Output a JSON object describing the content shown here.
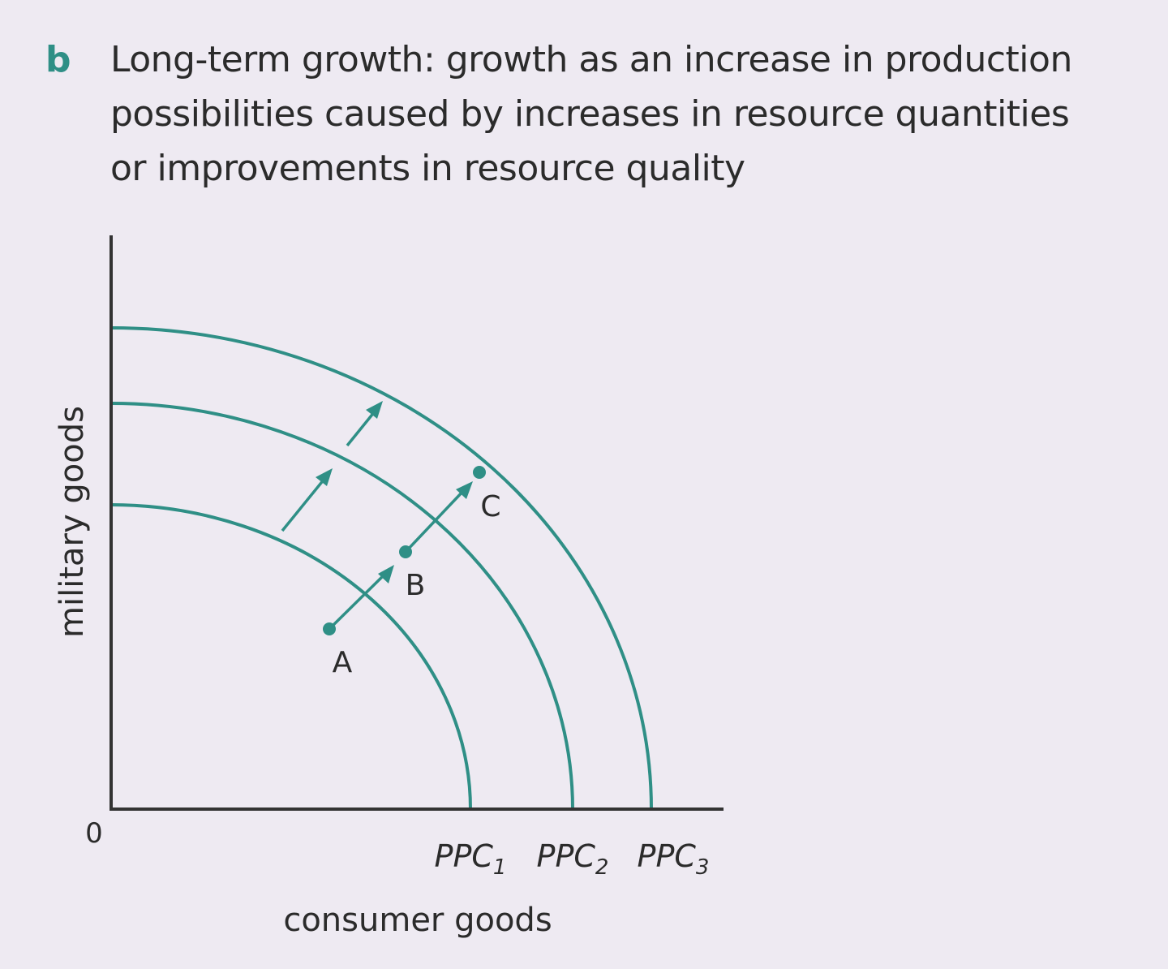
{
  "caption": {
    "letter": "b",
    "lines": [
      "Long-term growth: growth as an increase in production",
      "possibilities caused by increases in resource quantities",
      "or improvements in resource quality"
    ]
  },
  "diagram": {
    "y_axis_label": "military goods",
    "x_axis_label": "consumer goods",
    "origin_label": "0",
    "curves": [
      {
        "name": "PPC",
        "sub": "1"
      },
      {
        "name": "PPC",
        "sub": "2"
      },
      {
        "name": "PPC",
        "sub": "3"
      }
    ],
    "points": [
      "A",
      "B",
      "C"
    ],
    "colors": {
      "accent": "#2f8f86",
      "axis": "#333333",
      "background": "#eeeaf2"
    }
  }
}
